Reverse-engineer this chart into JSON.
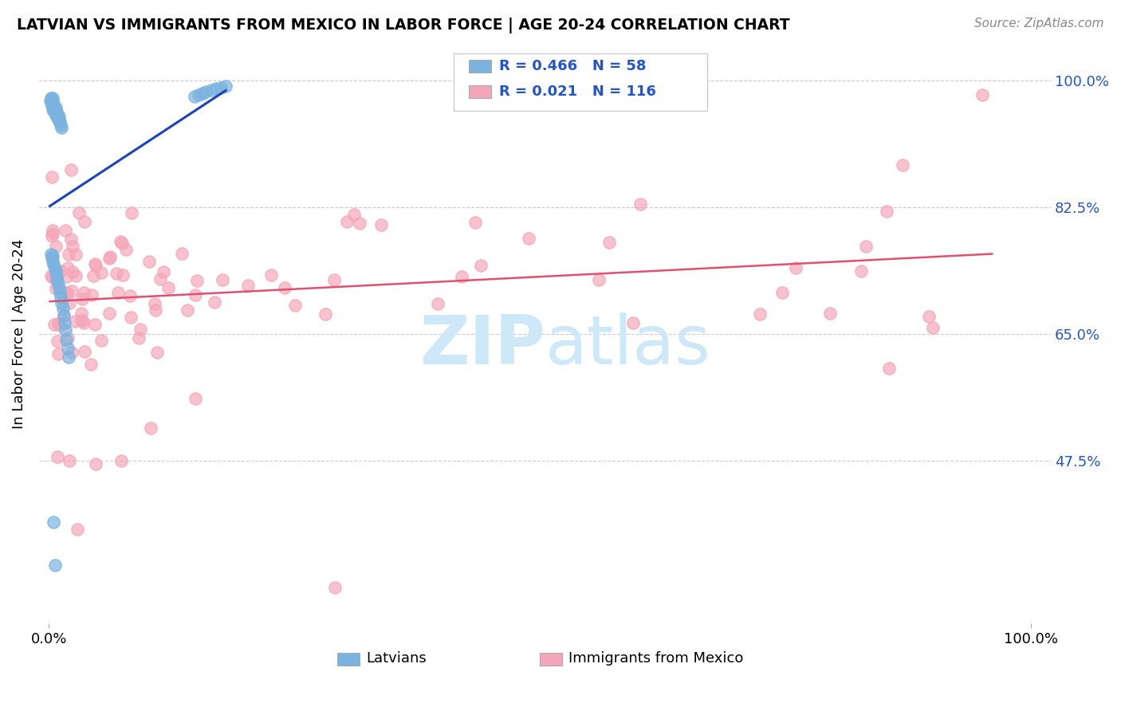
{
  "title": "LATVIAN VS IMMIGRANTS FROM MEXICO IN LABOR FORCE | AGE 20-24 CORRELATION CHART",
  "source": "Source: ZipAtlas.com",
  "ylabel": "In Labor Force | Age 20-24",
  "ytick_labels": [
    "100.0%",
    "82.5%",
    "65.0%",
    "47.5%"
  ],
  "ytick_values": [
    1.0,
    0.825,
    0.65,
    0.475
  ],
  "xlim": [
    -0.01,
    1.02
  ],
  "ylim": [
    0.25,
    1.05
  ],
  "latvian_color": "#7ab3e0",
  "mexico_color": "#f4a7b9",
  "trend_latvian_color": "#1a44bb",
  "trend_mexico_color": "#e05070",
  "legend_R_latvian": "0.466",
  "legend_N_latvian": "58",
  "legend_R_mexico": "0.021",
  "legend_N_mexico": "116",
  "watermark": "ZIPatlas",
  "watermark_color": "#cde8f8"
}
